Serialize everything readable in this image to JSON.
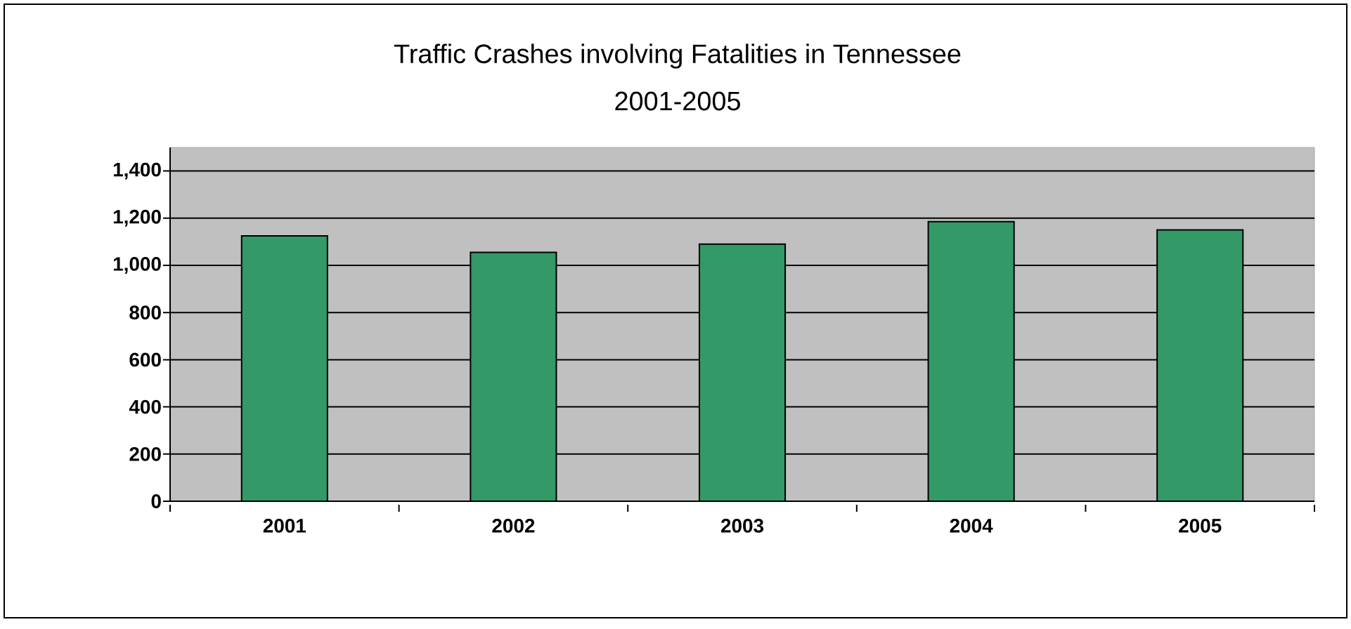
{
  "chart_data": {
    "type": "bar",
    "title": "Traffic Crashes involving Fatalities in Tennessee",
    "subtitle": "2001-2005",
    "categories": [
      "2001",
      "2002",
      "2003",
      "2004",
      "2005"
    ],
    "values": [
      1125,
      1055,
      1090,
      1185,
      1150
    ],
    "color": "#339966",
    "ylim": [
      0,
      1500
    ],
    "yticks": [
      {
        "value": 0,
        "label": "0"
      },
      {
        "value": 200,
        "label": "200"
      },
      {
        "value": 400,
        "label": "400"
      },
      {
        "value": 600,
        "label": "600"
      },
      {
        "value": 800,
        "label": "800"
      },
      {
        "value": 1000,
        "label": "1,000"
      },
      {
        "value": 1200,
        "label": "1,200"
      },
      {
        "value": 1400,
        "label": "1,400"
      }
    ],
    "grid": "y"
  }
}
